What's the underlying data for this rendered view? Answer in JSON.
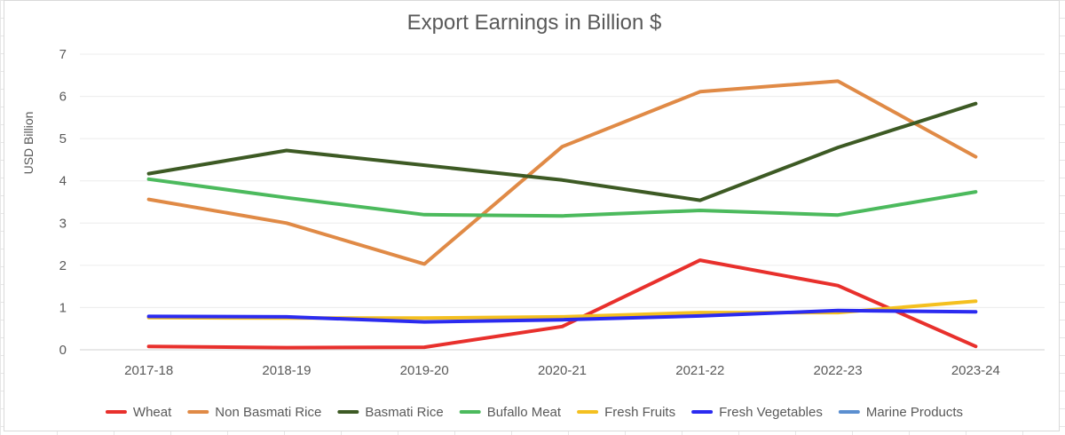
{
  "chart_data": {
    "type": "line",
    "title": "Export Earnings in Billion $",
    "xlabel": "",
    "ylabel": "USD Billion",
    "ylim": [
      0,
      7
    ],
    "yticks": [
      0,
      1,
      2,
      3,
      4,
      5,
      6,
      7
    ],
    "grid": "horizontal",
    "legend_position": "bottom",
    "categories": [
      "2017-18",
      "2018-19",
      "2019-20",
      "2020-21",
      "2021-22",
      "2022-23",
      "2023-24"
    ],
    "series": [
      {
        "name": "Wheat",
        "color": "#e8302c",
        "values": [
          0.08,
          0.05,
          0.06,
          0.55,
          2.12,
          1.52,
          0.08
        ]
      },
      {
        "name": "Non Basmati Rice",
        "color": "#e08a46",
        "values": [
          3.56,
          3.0,
          2.03,
          4.81,
          6.11,
          6.36,
          4.57
        ]
      },
      {
        "name": "Basmati Rice",
        "color": "#3d5a24",
        "values": [
          4.17,
          4.72,
          4.37,
          4.02,
          3.54,
          4.79,
          5.83
        ]
      },
      {
        "name": "Bufallo Meat",
        "color": "#4cba5d",
        "values": [
          4.04,
          3.6,
          3.2,
          3.17,
          3.3,
          3.19,
          3.74
        ]
      },
      {
        "name": "Fresh Fruits",
        "color": "#f4c020",
        "values": [
          0.76,
          0.75,
          0.75,
          0.78,
          0.88,
          0.88,
          1.15
        ]
      },
      {
        "name": "Fresh Vegetables",
        "color": "#2b2bf0",
        "values": [
          0.79,
          0.78,
          0.66,
          0.71,
          0.8,
          0.93,
          0.9
        ]
      },
      {
        "name": "Marine Products",
        "color": "#5b8fd0",
        "values": [
          null,
          null,
          null,
          null,
          null,
          null,
          null
        ]
      }
    ]
  }
}
